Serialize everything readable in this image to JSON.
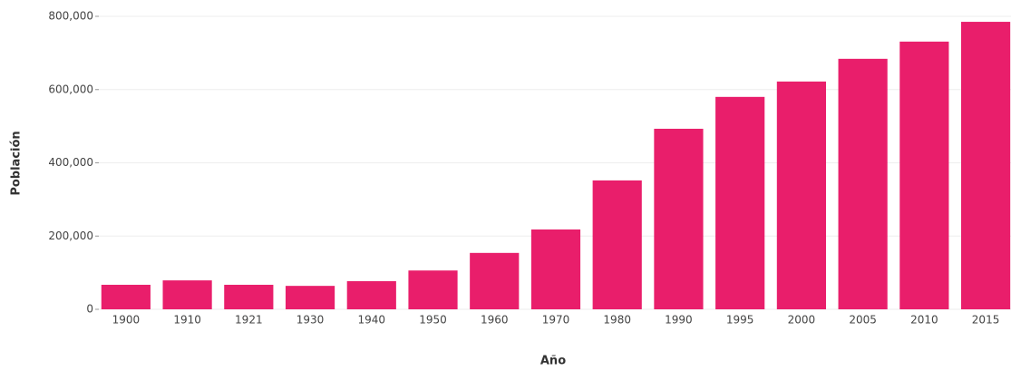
{
  "chart_data": {
    "type": "bar",
    "x_label": "Año",
    "y_label": "Población",
    "categories": [
      "1900",
      "1910",
      "1921",
      "1930",
      "1940",
      "1950",
      "1960",
      "1970",
      "1980",
      "1990",
      "1995",
      "2000",
      "2005",
      "2010",
      "2015"
    ],
    "values": [
      67000,
      79000,
      67000,
      64000,
      77000,
      106000,
      154000,
      218000,
      352000,
      493000,
      580000,
      622000,
      684000,
      731000,
      785000
    ],
    "color": "#e91e6b",
    "ylim": [
      0,
      800000
    ],
    "yticks": [
      0,
      {
        "value": 200000,
        "label": "200,000"
      },
      {
        "value": 400000,
        "label": "400,000"
      },
      {
        "value": 600000,
        "label": "600,000"
      },
      {
        "value": 800000,
        "label": "800,000"
      }
    ],
    "grid": true
  }
}
